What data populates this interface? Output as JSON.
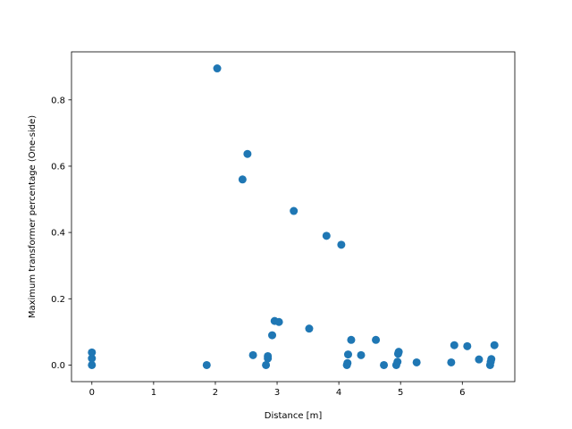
{
  "chart_data": {
    "type": "scatter",
    "xlabel": "Distance [m]",
    "ylabel": "Maximum transformer percentage (One-side)",
    "xlim": [
      -0.33,
      6.85
    ],
    "ylim": [
      -0.05,
      0.945
    ],
    "xticks": [
      0,
      1,
      2,
      3,
      4,
      5,
      6
    ],
    "xtick_labels": [
      "0",
      "1",
      "2",
      "3",
      "4",
      "5",
      "6"
    ],
    "yticks": [
      0.0,
      0.2,
      0.4,
      0.6,
      0.8
    ],
    "ytick_labels": [
      "0.0",
      "0.2",
      "0.4",
      "0.6",
      "0.8"
    ],
    "grid": false,
    "marker_color": "#1f77b4",
    "series": [
      {
        "x": [
          0.0,
          0.0,
          0.0,
          1.86,
          2.03,
          2.44,
          2.52,
          2.61,
          2.82,
          2.85,
          2.85,
          2.92,
          2.96,
          3.03,
          3.27,
          3.52,
          3.8,
          4.04,
          4.13,
          4.14,
          4.15,
          4.2,
          4.36,
          4.6,
          4.73,
          4.93,
          4.95,
          4.96,
          4.97,
          5.26,
          5.82,
          5.87,
          6.08,
          6.27,
          6.45,
          6.46,
          6.47,
          6.52
        ],
        "y": [
          0.0,
          0.02,
          0.038,
          0.0,
          0.895,
          0.56,
          0.637,
          0.03,
          0.0,
          0.02,
          0.027,
          0.09,
          0.133,
          0.13,
          0.465,
          0.11,
          0.39,
          0.363,
          0.0,
          0.006,
          0.032,
          0.076,
          0.03,
          0.076,
          0.0,
          0.0,
          0.01,
          0.034,
          0.04,
          0.008,
          0.008,
          0.06,
          0.057,
          0.017,
          0.0,
          0.01,
          0.018,
          0.06
        ]
      }
    ]
  }
}
